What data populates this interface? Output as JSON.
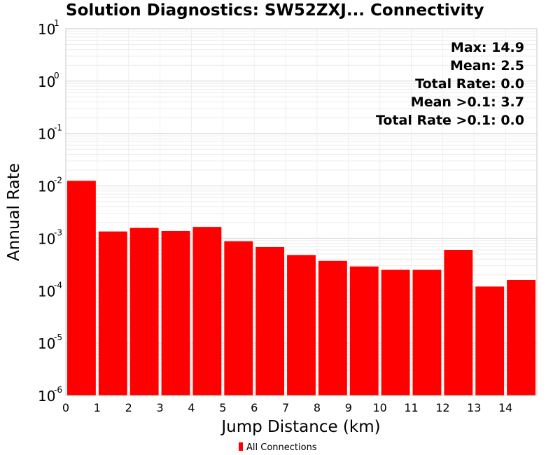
{
  "chart_data": {
    "type": "bar",
    "title": "Solution Diagnostics: SW52ZXJ... Connectivity",
    "xlabel": "Jump Distance (km)",
    "ylabel": "Annual Rate",
    "yscale": "log",
    "ylim": [
      1e-06,
      10
    ],
    "xlim": [
      0,
      15
    ],
    "ytick_labels": [
      {
        "base": "10",
        "exp": "-6",
        "value": 1e-06
      },
      {
        "base": "10",
        "exp": "-5",
        "value": 1e-05
      },
      {
        "base": "10",
        "exp": "-4",
        "value": 0.0001
      },
      {
        "base": "10",
        "exp": "-3",
        "value": 0.001
      },
      {
        "base": "10",
        "exp": "-2",
        "value": 0.01
      },
      {
        "base": "10",
        "exp": "-1",
        "value": 0.1
      },
      {
        "base": "10",
        "exp": "0",
        "value": 1
      },
      {
        "base": "10",
        "exp": "1",
        "value": 10
      }
    ],
    "xtick_labels": [
      "0",
      "1",
      "2",
      "3",
      "4",
      "5",
      "6",
      "7",
      "8",
      "9",
      "10",
      "11",
      "12",
      "13",
      "14"
    ],
    "bin_edges": [
      0,
      1,
      2,
      3,
      4,
      5,
      6,
      7,
      8,
      9,
      10,
      11,
      12,
      13,
      14,
      15
    ],
    "series": [
      {
        "name": "All Connections",
        "color": "#ff0000",
        "values": [
          0.0125,
          0.00135,
          0.00158,
          0.00138,
          0.00165,
          0.00088,
          0.00068,
          0.00048,
          0.00037,
          0.00029,
          0.00025,
          0.00025,
          0.0006,
          0.00012,
          0.00016
        ]
      }
    ],
    "annotations": [
      "Max: 14.9",
      "Mean: 2.5",
      "Total Rate: 0.0",
      "Mean >0.1: 3.7",
      "Total Rate >0.1: 0.0"
    ],
    "legend_position": "bottom-center",
    "grid": true
  }
}
